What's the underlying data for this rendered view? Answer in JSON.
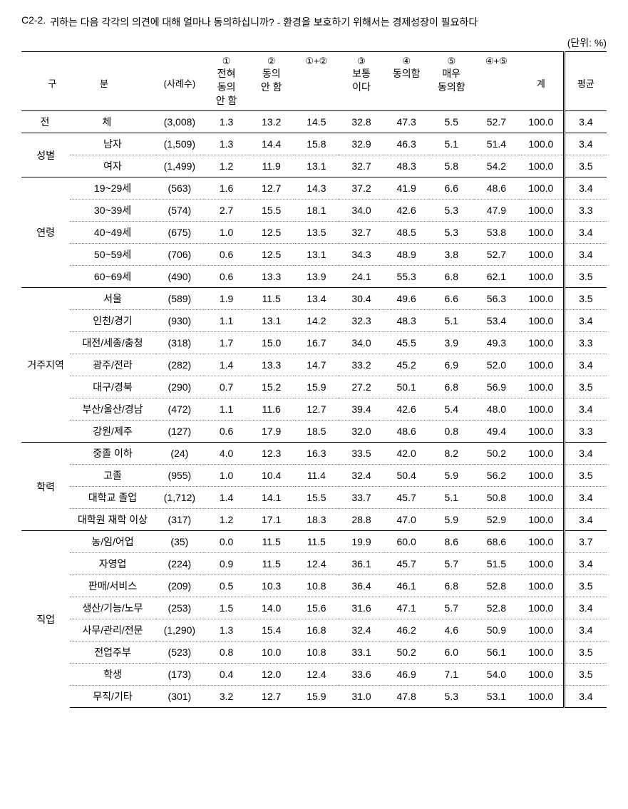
{
  "title_num": "C2-2.",
  "title_text": "귀하는 다음 각각의 의견에 대해 얼마나 동의하십니까? - 환경을 보호하기 위해서는 경제성장이 필요하다",
  "unit": "(단위: %)",
  "headers": {
    "gubun": "구        분",
    "cases": "(사례수)",
    "sum12": "①+②",
    "sum45": "④+⑤",
    "c1_sup": "①",
    "c1": "전혀\n동의\n안 함",
    "c2_sup": "②",
    "c2": "동의\n안 함",
    "c3_sup": "③",
    "c3": "보통\n이다",
    "c4_sup": "④",
    "c4": "동의함",
    "c5_sup": "⑤",
    "c5": "매우\n동의함",
    "total": "계",
    "avg": "평균"
  },
  "groups": [
    {
      "label": "전        체",
      "full_row": true,
      "rows": [
        {
          "sub": "",
          "n": "(3,008)",
          "v": [
            "1.3",
            "13.2",
            "14.5",
            "32.8",
            "47.3",
            "5.5",
            "52.7",
            "100.0"
          ],
          "avg": "3.4"
        }
      ]
    },
    {
      "label": "성별",
      "rows": [
        {
          "sub": "남자",
          "n": "(1,509)",
          "v": [
            "1.3",
            "14.4",
            "15.8",
            "32.9",
            "46.3",
            "5.1",
            "51.4",
            "100.0"
          ],
          "avg": "3.4"
        },
        {
          "sub": "여자",
          "n": "(1,499)",
          "v": [
            "1.2",
            "11.9",
            "13.1",
            "32.7",
            "48.3",
            "5.8",
            "54.2",
            "100.0"
          ],
          "avg": "3.5"
        }
      ]
    },
    {
      "label": "연령",
      "rows": [
        {
          "sub": "19~29세",
          "n": "(563)",
          "v": [
            "1.6",
            "12.7",
            "14.3",
            "37.2",
            "41.9",
            "6.6",
            "48.6",
            "100.0"
          ],
          "avg": "3.4"
        },
        {
          "sub": "30~39세",
          "n": "(574)",
          "v": [
            "2.7",
            "15.5",
            "18.1",
            "34.0",
            "42.6",
            "5.3",
            "47.9",
            "100.0"
          ],
          "avg": "3.3"
        },
        {
          "sub": "40~49세",
          "n": "(675)",
          "v": [
            "1.0",
            "12.5",
            "13.5",
            "32.7",
            "48.5",
            "5.3",
            "53.8",
            "100.0"
          ],
          "avg": "3.4"
        },
        {
          "sub": "50~59세",
          "n": "(706)",
          "v": [
            "0.6",
            "12.5",
            "13.1",
            "34.3",
            "48.9",
            "3.8",
            "52.7",
            "100.0"
          ],
          "avg": "3.4"
        },
        {
          "sub": "60~69세",
          "n": "(490)",
          "v": [
            "0.6",
            "13.3",
            "13.9",
            "24.1",
            "55.3",
            "6.8",
            "62.1",
            "100.0"
          ],
          "avg": "3.5"
        }
      ]
    },
    {
      "label": "거주지역",
      "rows": [
        {
          "sub": "서울",
          "n": "(589)",
          "v": [
            "1.9",
            "11.5",
            "13.4",
            "30.4",
            "49.6",
            "6.6",
            "56.3",
            "100.0"
          ],
          "avg": "3.5"
        },
        {
          "sub": "인천/경기",
          "n": "(930)",
          "v": [
            "1.1",
            "13.1",
            "14.2",
            "32.3",
            "48.3",
            "5.1",
            "53.4",
            "100.0"
          ],
          "avg": "3.4"
        },
        {
          "sub": "대전/세종/충청",
          "n": "(318)",
          "v": [
            "1.7",
            "15.0",
            "16.7",
            "34.0",
            "45.5",
            "3.9",
            "49.3",
            "100.0"
          ],
          "avg": "3.3"
        },
        {
          "sub": "광주/전라",
          "n": "(282)",
          "v": [
            "1.4",
            "13.3",
            "14.7",
            "33.2",
            "45.2",
            "6.9",
            "52.0",
            "100.0"
          ],
          "avg": "3.4"
        },
        {
          "sub": "대구/경북",
          "n": "(290)",
          "v": [
            "0.7",
            "15.2",
            "15.9",
            "27.2",
            "50.1",
            "6.8",
            "56.9",
            "100.0"
          ],
          "avg": "3.5"
        },
        {
          "sub": "부산/울산/경남",
          "n": "(472)",
          "v": [
            "1.1",
            "11.6",
            "12.7",
            "39.4",
            "42.6",
            "5.4",
            "48.0",
            "100.0"
          ],
          "avg": "3.4"
        },
        {
          "sub": "강원/제주",
          "n": "(127)",
          "v": [
            "0.6",
            "17.9",
            "18.5",
            "32.0",
            "48.6",
            "0.8",
            "49.4",
            "100.0"
          ],
          "avg": "3.3"
        }
      ]
    },
    {
      "label": "학력",
      "rows": [
        {
          "sub": "중졸 이하",
          "n": "(24)",
          "v": [
            "4.0",
            "12.3",
            "16.3",
            "33.5",
            "42.0",
            "8.2",
            "50.2",
            "100.0"
          ],
          "avg": "3.4"
        },
        {
          "sub": "고졸",
          "n": "(955)",
          "v": [
            "1.0",
            "10.4",
            "11.4",
            "32.4",
            "50.4",
            "5.9",
            "56.2",
            "100.0"
          ],
          "avg": "3.5"
        },
        {
          "sub": "대학교 졸업",
          "n": "(1,712)",
          "v": [
            "1.4",
            "14.1",
            "15.5",
            "33.7",
            "45.7",
            "5.1",
            "50.8",
            "100.0"
          ],
          "avg": "3.4"
        },
        {
          "sub": "대학원 재학 이상",
          "n": "(317)",
          "v": [
            "1.2",
            "17.1",
            "18.3",
            "28.8",
            "47.0",
            "5.9",
            "52.9",
            "100.0"
          ],
          "avg": "3.4"
        }
      ]
    },
    {
      "label": "직업",
      "rows": [
        {
          "sub": "농/임/어업",
          "n": "(35)",
          "v": [
            "0.0",
            "11.5",
            "11.5",
            "19.9",
            "60.0",
            "8.6",
            "68.6",
            "100.0"
          ],
          "avg": "3.7"
        },
        {
          "sub": "자영업",
          "n": "(224)",
          "v": [
            "0.9",
            "11.5",
            "12.4",
            "36.1",
            "45.7",
            "5.7",
            "51.5",
            "100.0"
          ],
          "avg": "3.4"
        },
        {
          "sub": "판매/서비스",
          "n": "(209)",
          "v": [
            "0.5",
            "10.3",
            "10.8",
            "36.4",
            "46.1",
            "6.8",
            "52.8",
            "100.0"
          ],
          "avg": "3.5"
        },
        {
          "sub": "생산/기능/노무",
          "n": "(253)",
          "v": [
            "1.5",
            "14.0",
            "15.6",
            "31.6",
            "47.1",
            "5.7",
            "52.8",
            "100.0"
          ],
          "avg": "3.4"
        },
        {
          "sub": "사무/관리/전문",
          "n": "(1,290)",
          "v": [
            "1.3",
            "15.4",
            "16.8",
            "32.4",
            "46.2",
            "4.6",
            "50.9",
            "100.0"
          ],
          "avg": "3.4"
        },
        {
          "sub": "전업주부",
          "n": "(523)",
          "v": [
            "0.8",
            "10.0",
            "10.8",
            "33.1",
            "50.2",
            "6.0",
            "56.1",
            "100.0"
          ],
          "avg": "3.5"
        },
        {
          "sub": "학생",
          "n": "(173)",
          "v": [
            "0.4",
            "12.0",
            "12.4",
            "33.6",
            "46.9",
            "7.1",
            "54.0",
            "100.0"
          ],
          "avg": "3.5"
        },
        {
          "sub": "무직/기타",
          "n": "(301)",
          "v": [
            "3.2",
            "12.7",
            "15.9",
            "31.0",
            "47.8",
            "5.3",
            "53.1",
            "100.0"
          ],
          "avg": "3.4"
        }
      ]
    }
  ]
}
